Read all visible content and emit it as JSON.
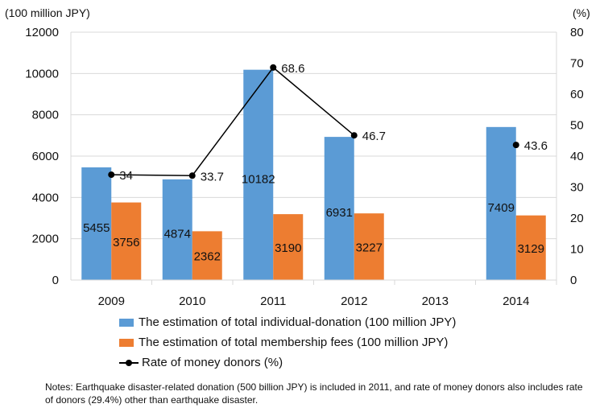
{
  "chart_data": {
    "type": "bar",
    "categories": [
      "2009",
      "2010",
      "2011",
      "2012",
      "2013",
      "2014"
    ],
    "series": [
      {
        "name": "The estimation of total individual-donation (100 million JPY)",
        "type": "bar",
        "axis": "left",
        "color": "#5B9BD5",
        "values": [
          5455,
          4874,
          10182,
          6931,
          null,
          7409
        ],
        "labels": [
          "5455",
          "4874",
          "10182",
          "6931",
          "",
          "7409"
        ]
      },
      {
        "name": "The estimation of total membership fees (100 million JPY)",
        "type": "bar",
        "axis": "left",
        "color": "#ED7D31",
        "values": [
          3756,
          2362,
          3190,
          3227,
          null,
          3129
        ],
        "labels": [
          "3756",
          "2362",
          "3190",
          "3227",
          "",
          "3129"
        ]
      },
      {
        "name": "Rate of money donors (%)",
        "type": "line",
        "axis": "right",
        "color": "#000000",
        "values": [
          34,
          33.7,
          68.6,
          46.7,
          null,
          43.6
        ],
        "labels": [
          "34",
          "33.7",
          "68.6",
          "46.7",
          "",
          "43.6"
        ]
      }
    ],
    "ylabel_left": "(100 million JPY)",
    "ylabel_right": "(%)",
    "ylim_left": [
      0,
      12000
    ],
    "ylim_right": [
      0,
      80
    ],
    "yticks_left": [
      "0",
      "2000",
      "4000",
      "6000",
      "8000",
      "10000",
      "12000"
    ],
    "yticks_right": [
      "0",
      "10",
      "20",
      "30",
      "40",
      "50",
      "60",
      "70",
      "80"
    ],
    "grid": true,
    "legend_position": "bottom"
  },
  "note": "Notes: Earthquake disaster-related donation (500 billion JPY) is included in 2011, and rate of money donors also includes rate of donors (29.4%) other than earthquake disaster."
}
